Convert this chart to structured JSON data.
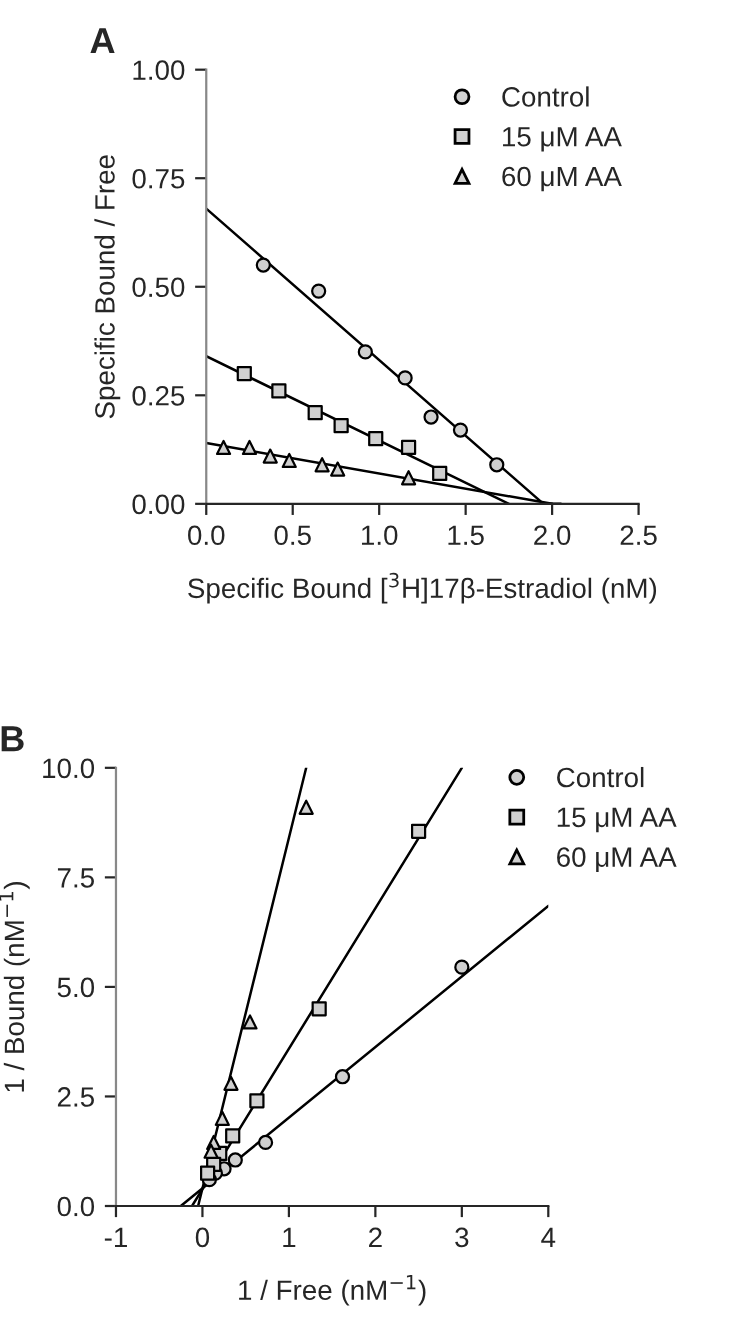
{
  "chart_data": [
    {
      "type": "scatter",
      "title": "A",
      "xlabel": "Specific Bound [$^{3}$H]17β-Estradiol (nM)",
      "ylabel": "Specific Bound / Free",
      "xlim": [
        0,
        2.5
      ],
      "ylim": [
        0,
        1
      ],
      "xticks": [
        {
          "value": 0,
          "label": "0.0"
        },
        {
          "value": 0.5,
          "label": "0.5"
        },
        {
          "value": 1,
          "label": "1.0"
        },
        {
          "value": 1.5,
          "label": "1.5"
        },
        {
          "value": 2,
          "label": "2.0"
        },
        {
          "value": 2.5,
          "label": "2.5"
        }
      ],
      "yticks": [
        {
          "value": 0,
          "label": "0.00"
        },
        {
          "value": 0.25,
          "label": "0.25"
        },
        {
          "value": 0.5,
          "label": "0.50"
        },
        {
          "value": 0.75,
          "label": "0.75"
        },
        {
          "value": 1,
          "label": "1.00"
        }
      ],
      "grid": false,
      "legend": "top right",
      "series": [
        {
          "name": "Control",
          "color": "#000000",
          "marker": "circle",
          "x": [
            0.33,
            0.65,
            0.92,
            1.15,
            1.3,
            1.47,
            1.68
          ],
          "values": [
            0.55,
            0.49,
            0.35,
            0.29,
            0.2,
            0.17,
            0.09
          ]
        },
        {
          "name": "15 μM AA",
          "color": "#000000",
          "marker": "square",
          "x": [
            0.22,
            0.42,
            0.63,
            0.78,
            0.98,
            1.17,
            1.35
          ],
          "values": [
            0.3,
            0.26,
            0.21,
            0.18,
            0.15,
            0.13,
            0.07
          ]
        },
        {
          "name": "60 μM AA",
          "color": "#000000",
          "marker": "triangle",
          "x": [
            0.1,
            0.25,
            0.37,
            0.48,
            0.67,
            0.76,
            1.17
          ],
          "values": [
            0.13,
            0.13,
            0.11,
            0.1,
            0.09,
            0.08,
            0.06
          ]
        },
        {
          "type": "line",
          "color": "#000000",
          "x": [
            0,
            1.95,
            2.05
          ],
          "values": [
            0.68,
            0,
            0
          ]
        },
        {
          "type": "line",
          "color": "#000000",
          "x": [
            0,
            1.75
          ],
          "values": [
            0.34,
            0
          ]
        },
        {
          "type": "line",
          "color": "#000000",
          "x": [
            0,
            2.0
          ],
          "values": [
            0.14,
            0
          ]
        }
      ]
    },
    {
      "type": "scatter",
      "title": "B",
      "xlabel": "1 / Free (nM$^{−1}$)",
      "ylabel": "1 / Bound (nM$^{−1}$)",
      "xlim": [
        -1,
        4
      ],
      "ylim": [
        0,
        10
      ],
      "xticks": [
        -1,
        0,
        1,
        2,
        3,
        4
      ],
      "yticks": [
        {
          "value": 0,
          "label": "0.0"
        },
        {
          "value": 2.5,
          "label": "2.5"
        },
        {
          "value": 5,
          "label": "5.0"
        },
        {
          "value": 7.5,
          "label": "7.5"
        },
        {
          "value": 10,
          "label": "10.0"
        }
      ],
      "grid": false,
      "legend": "right",
      "series": [
        {
          "name": "Control",
          "color": "#000000",
          "marker": "circle",
          "x": [
            3.0,
            1.62,
            0.73,
            0.38,
            0.25,
            0.15,
            0.08
          ],
          "values": [
            5.45,
            2.95,
            1.45,
            1.05,
            0.85,
            0.75,
            0.6
          ]
        },
        {
          "name": "15 μM AA",
          "color": "#000000",
          "marker": "square",
          "x": [
            2.5,
            1.35,
            0.63,
            0.35,
            0.2,
            0.13,
            0.06
          ],
          "values": [
            8.55,
            4.5,
            2.4,
            1.6,
            1.2,
            0.95,
            0.75
          ]
        },
        {
          "name": "60 μM AA",
          "color": "#000000",
          "marker": "triangle",
          "x": [
            1.2,
            0.55,
            0.33,
            0.23,
            0.13,
            0.1
          ],
          "values": [
            9.1,
            4.2,
            2.8,
            2.0,
            1.45,
            1.25
          ]
        },
        {
          "type": "line",
          "color": "#000000",
          "x": [
            -0.25,
            4.0
          ],
          "values": [
            0,
            6.85
          ]
        },
        {
          "type": "line",
          "color": "#000000",
          "x": [
            -0.12,
            3.0
          ],
          "values": [
            0,
            10
          ]
        },
        {
          "type": "line",
          "color": "#000000",
          "x": [
            -0.05,
            1.2
          ],
          "values": [
            0,
            10
          ]
        }
      ]
    }
  ]
}
